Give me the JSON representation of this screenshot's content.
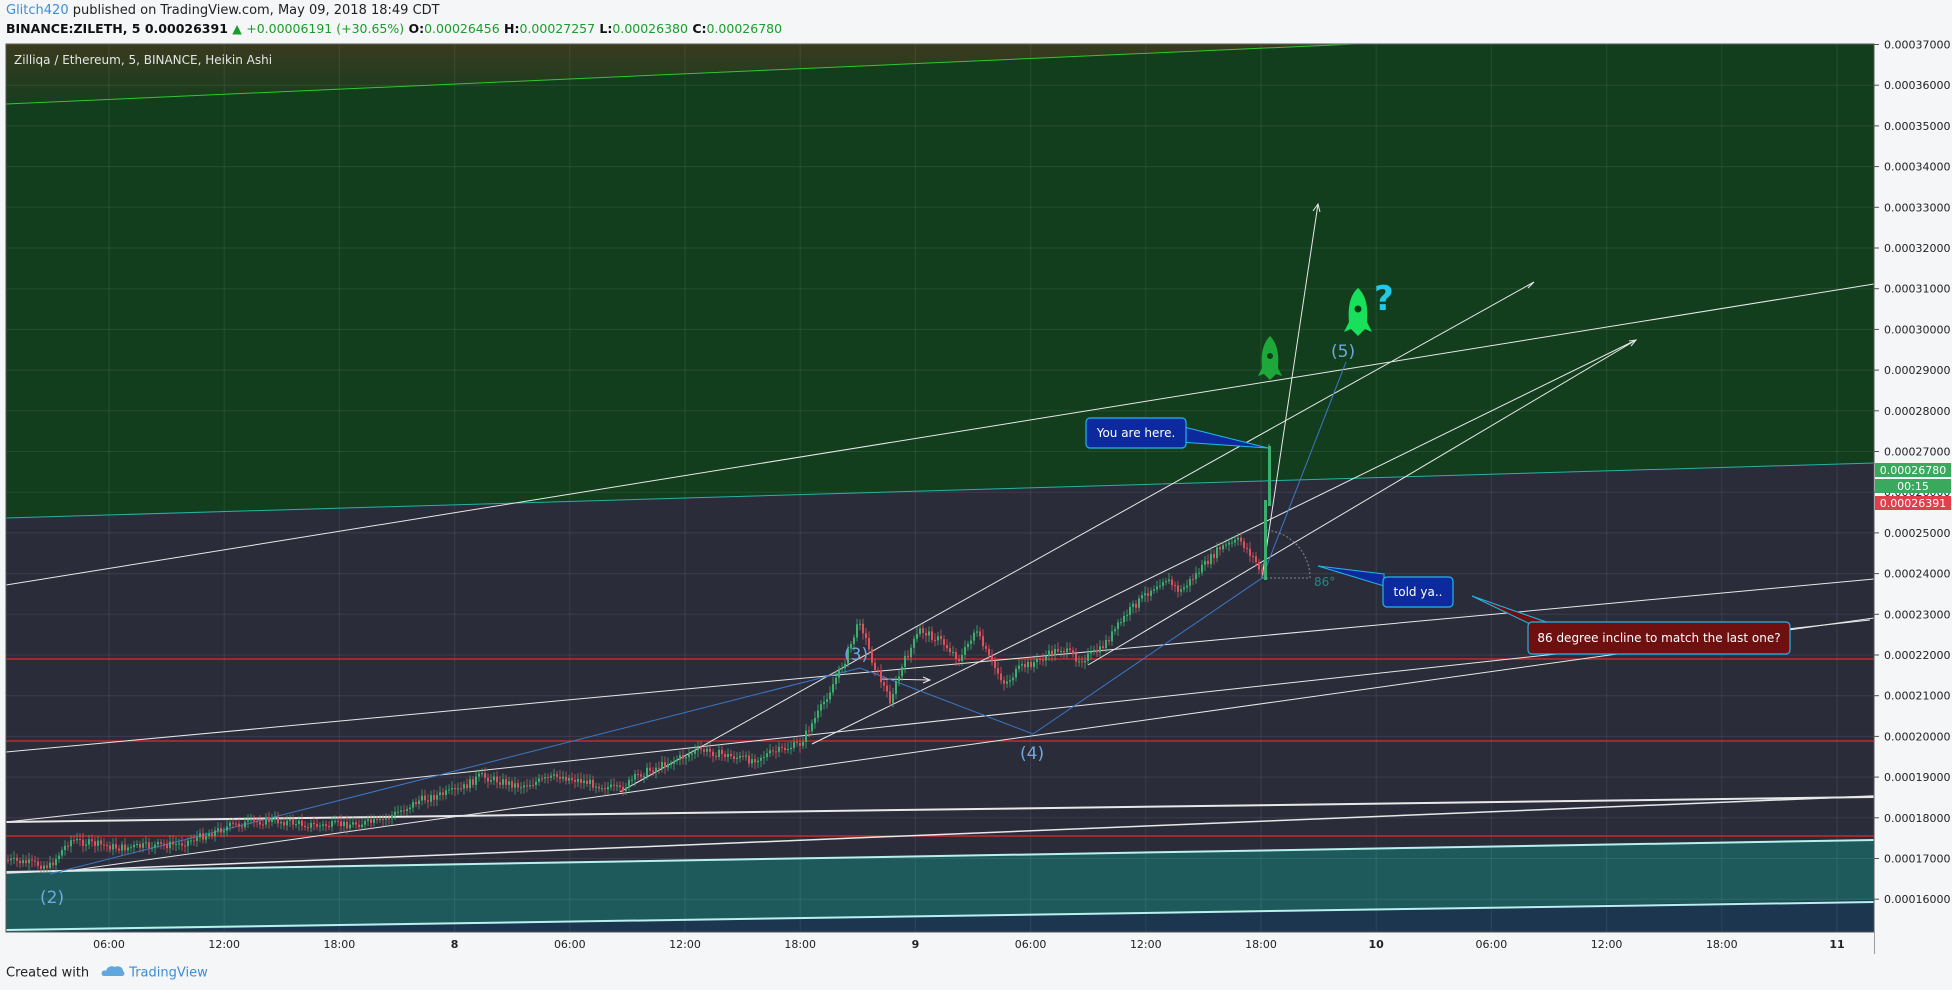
{
  "header": {
    "author": "Glitch420",
    "published_text": "published on TradingView.com, May 09, 2018 18:49 CDT",
    "symbol": "BINANCE:ZILETH, 5",
    "last": "0.00026391",
    "change": "+0.00006191 (+30.65%)",
    "open_label": "O:",
    "open": "0.00026456",
    "high_label": "H:",
    "high": "0.00027257",
    "low_label": "L:",
    "low": "0.00026380",
    "close_label": "C:",
    "close": "0.00026780"
  },
  "chart": {
    "title": "Zilliqa / Ethereum, 5, BINANCE, Heikin Ashi",
    "price_ticks": [
      "0.00037000",
      "0.00036000",
      "0.00035000",
      "0.00034000",
      "0.00033000",
      "0.00032000",
      "0.00031000",
      "0.00030000",
      "0.00029000",
      "0.00028000",
      "0.00027000",
      "0.00026000",
      "0.00025000",
      "0.00024000",
      "0.00023000",
      "0.00022000",
      "0.00021000",
      "0.00020000",
      "0.00019000",
      "0.00018000",
      "0.00017000",
      "0.00016000"
    ],
    "time_ticks": [
      "06:00",
      "12:00",
      "18:00",
      "8",
      "06:00",
      "12:00",
      "18:00",
      "9",
      "06:00",
      "12:00",
      "18:00",
      "10",
      "06:00",
      "12:00",
      "18:00",
      "11"
    ],
    "price_badge_close": "0.00026780",
    "price_badge_countdown": "00:15",
    "price_badge_last": "0.00026391",
    "colors": {
      "background": "#2b2c3a",
      "green_zone": "#123e1e",
      "teal_zone": "#1e5a5c",
      "up_candle": "#3bb06e",
      "down_candle": "#e0505c",
      "support_line": "#e02a2a",
      "close_badge": "#3aa95e",
      "last_badge": "#e0404c",
      "callout_blue": "#0c2a9e",
      "callout_red": "#6e1010"
    },
    "wave_labels": [
      "(2)",
      "(3)",
      "(4)",
      "(5)"
    ],
    "angle_label": "86°",
    "callouts": {
      "you_are_here": "You are here.",
      "told_ya": "told ya..",
      "incline": "86 degree incline to match the last one?"
    },
    "icons": [
      "rocket-icon",
      "rocket-icon",
      "question-mark-icon"
    ],
    "question_mark": "?"
  },
  "footer": {
    "created_with": "Created with",
    "brand": "TradingView"
  }
}
